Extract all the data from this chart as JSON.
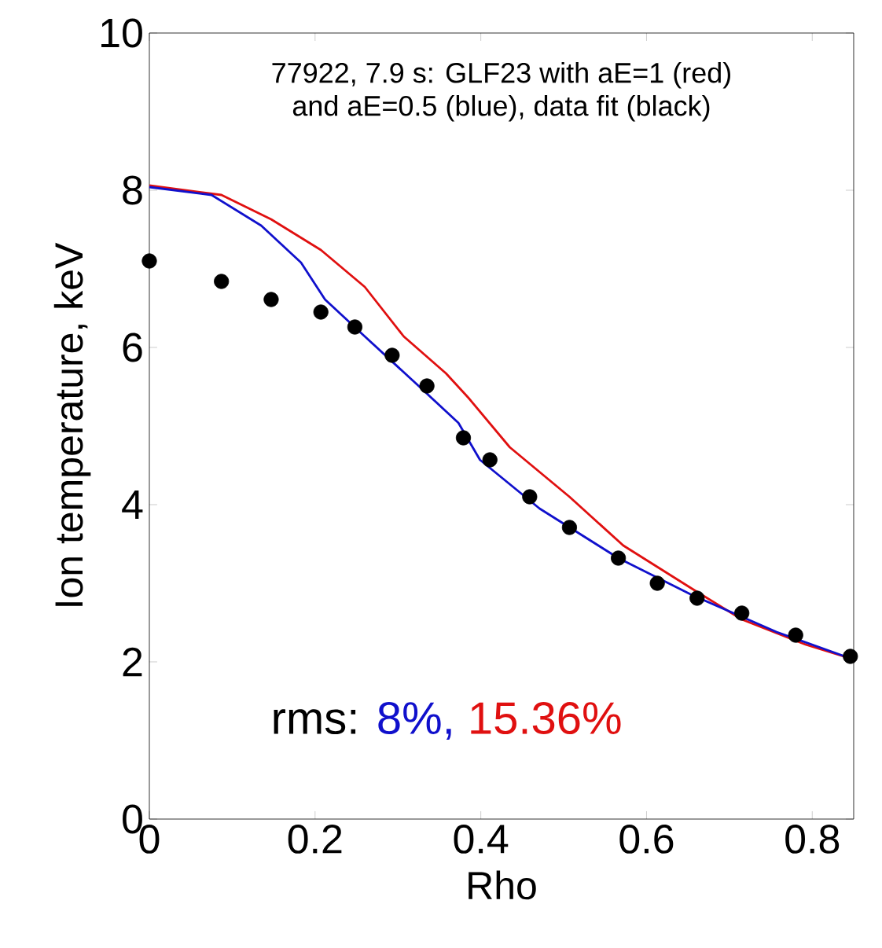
{
  "chart_data": {
    "type": "line",
    "xlabel": "Rho",
    "ylabel": "Ion temperature, keV",
    "xlim": [
      0,
      0.85
    ],
    "ylim": [
      0,
      10
    ],
    "xticks": [
      0,
      0.2,
      0.4,
      0.6,
      0.8
    ],
    "yticks": [
      0,
      2,
      4,
      6,
      8,
      10
    ],
    "annotations": [
      "77922, 7.9 s: GLF23 with aE=1 (red)",
      "and aE=0.5 (blue), data fit (black)",
      "rms:",
      "8%,",
      "15.36%"
    ],
    "series": [
      {
        "type": "scatter",
        "color": "#000000",
        "x": [
          0,
          0.087,
          0.147,
          0.207,
          0.248,
          0.293,
          0.335,
          0.379,
          0.411,
          0.459,
          0.507,
          0.566,
          0.613,
          0.661,
          0.715,
          0.78,
          0.846
        ],
        "values": [
          7.1,
          6.84,
          6.61,
          6.45,
          6.26,
          5.9,
          5.51,
          4.85,
          4.57,
          4.1,
          3.71,
          3.32,
          3.0,
          2.81,
          2.62,
          2.34,
          2.07
        ]
      },
      {
        "color": "#e01010",
        "x": [
          0,
          0.087,
          0.147,
          0.207,
          0.26,
          0.307,
          0.358,
          0.385,
          0.435,
          0.507,
          0.572,
          0.655,
          0.715,
          0.792,
          0.85
        ],
        "values": [
          8.06,
          7.94,
          7.63,
          7.24,
          6.77,
          6.14,
          5.67,
          5.36,
          4.73,
          4.1,
          3.48,
          2.93,
          2.54,
          2.22,
          2.03
        ]
      },
      {
        "color": "#1010cc",
        "x": [
          0,
          0.075,
          0.135,
          0.183,
          0.212,
          0.26,
          0.325,
          0.373,
          0.399,
          0.471,
          0.566,
          0.655,
          0.757,
          0.85
        ],
        "values": [
          8.04,
          7.94,
          7.55,
          7.08,
          6.61,
          6.14,
          5.51,
          5.04,
          4.57,
          3.95,
          3.32,
          2.85,
          2.38,
          2.03
        ]
      }
    ]
  }
}
